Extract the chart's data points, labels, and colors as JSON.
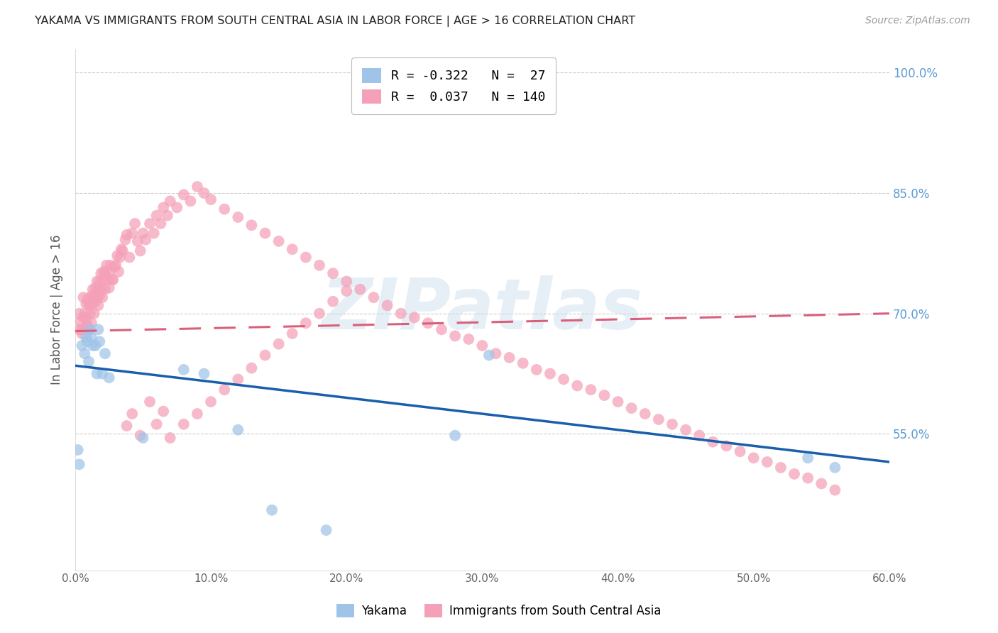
{
  "title": "YAKAMA VS IMMIGRANTS FROM SOUTH CENTRAL ASIA IN LABOR FORCE | AGE > 16 CORRELATION CHART",
  "source": "Source: ZipAtlas.com",
  "ylabel": "In Labor Force | Age > 16",
  "xlim": [
    0.0,
    0.6
  ],
  "ylim": [
    0.38,
    1.03
  ],
  "yticks": [
    0.55,
    0.7,
    0.85,
    1.0
  ],
  "ytick_labels": [
    "55.0%",
    "70.0%",
    "85.0%",
    "100.0%"
  ],
  "xticks": [
    0.0,
    0.1,
    0.2,
    0.3,
    0.4,
    0.5,
    0.6
  ],
  "xtick_labels": [
    "0.0%",
    "10.0%",
    "20.0%",
    "30.0%",
    "40.0%",
    "50.0%",
    "60.0%"
  ],
  "yakama_color": "#A0C4E8",
  "immigrants_color": "#F4A0B8",
  "trend_yakama_color": "#1A5FAB",
  "trend_immigrants_color": "#D9607A",
  "background_color": "#FFFFFF",
  "title_color": "#222222",
  "tick_color_right": "#5B9BD5",
  "grid_color": "#CCCCCC",
  "R_yakama": -0.322,
  "N_yakama": 27,
  "R_immigrants": 0.037,
  "N_immigrants": 140,
  "legend_label_yakama": "Yakama",
  "legend_label_immigrants": "Immigrants from South Central Asia",
  "watermark": "ZIPatlas",
  "watermark_color": "#C8DAEC",
  "yakama_x": [
    0.002,
    0.003,
    0.005,
    0.007,
    0.008,
    0.009,
    0.01,
    0.011,
    0.012,
    0.013,
    0.015,
    0.016,
    0.017,
    0.018,
    0.02,
    0.022,
    0.025,
    0.05,
    0.08,
    0.095,
    0.12,
    0.145,
    0.185,
    0.28,
    0.305,
    0.54,
    0.56
  ],
  "yakama_y": [
    0.53,
    0.512,
    0.66,
    0.65,
    0.67,
    0.665,
    0.64,
    0.68,
    0.67,
    0.66,
    0.66,
    0.625,
    0.68,
    0.665,
    0.625,
    0.65,
    0.62,
    0.545,
    0.63,
    0.625,
    0.555,
    0.455,
    0.43,
    0.548,
    0.648,
    0.52,
    0.508
  ],
  "immigrants_x": [
    0.003,
    0.003,
    0.004,
    0.005,
    0.005,
    0.006,
    0.006,
    0.007,
    0.007,
    0.008,
    0.008,
    0.009,
    0.009,
    0.01,
    0.01,
    0.011,
    0.011,
    0.012,
    0.012,
    0.013,
    0.013,
    0.014,
    0.014,
    0.015,
    0.015,
    0.016,
    0.016,
    0.017,
    0.017,
    0.018,
    0.018,
    0.019,
    0.019,
    0.02,
    0.02,
    0.021,
    0.022,
    0.022,
    0.023,
    0.024,
    0.025,
    0.025,
    0.026,
    0.027,
    0.028,
    0.029,
    0.03,
    0.031,
    0.032,
    0.033,
    0.034,
    0.035,
    0.037,
    0.038,
    0.04,
    0.042,
    0.044,
    0.046,
    0.048,
    0.05,
    0.052,
    0.055,
    0.058,
    0.06,
    0.063,
    0.065,
    0.068,
    0.07,
    0.075,
    0.08,
    0.085,
    0.09,
    0.095,
    0.1,
    0.11,
    0.12,
    0.13,
    0.14,
    0.15,
    0.16,
    0.17,
    0.18,
    0.19,
    0.2,
    0.21,
    0.22,
    0.23,
    0.24,
    0.25,
    0.26,
    0.27,
    0.28,
    0.29,
    0.3,
    0.31,
    0.32,
    0.33,
    0.34,
    0.35,
    0.36,
    0.37,
    0.38,
    0.39,
    0.4,
    0.41,
    0.42,
    0.43,
    0.44,
    0.45,
    0.46,
    0.47,
    0.48,
    0.49,
    0.5,
    0.51,
    0.52,
    0.53,
    0.54,
    0.55,
    0.56,
    0.038,
    0.042,
    0.048,
    0.055,
    0.06,
    0.065,
    0.07,
    0.08,
    0.09,
    0.1,
    0.11,
    0.12,
    0.13,
    0.14,
    0.15,
    0.16,
    0.17,
    0.18,
    0.19,
    0.2
  ],
  "immigrants_y": [
    0.68,
    0.7,
    0.69,
    0.68,
    0.675,
    0.695,
    0.72,
    0.68,
    0.7,
    0.692,
    0.712,
    0.718,
    0.685,
    0.712,
    0.68,
    0.71,
    0.7,
    0.722,
    0.688,
    0.712,
    0.73,
    0.7,
    0.72,
    0.715,
    0.732,
    0.72,
    0.74,
    0.71,
    0.73,
    0.722,
    0.74,
    0.73,
    0.75,
    0.72,
    0.742,
    0.752,
    0.73,
    0.75,
    0.76,
    0.742,
    0.732,
    0.752,
    0.76,
    0.742,
    0.742,
    0.758,
    0.76,
    0.772,
    0.752,
    0.77,
    0.78,
    0.778,
    0.792,
    0.798,
    0.77,
    0.8,
    0.812,
    0.79,
    0.778,
    0.8,
    0.792,
    0.812,
    0.8,
    0.822,
    0.812,
    0.832,
    0.822,
    0.84,
    0.832,
    0.848,
    0.84,
    0.858,
    0.85,
    0.842,
    0.83,
    0.82,
    0.81,
    0.8,
    0.79,
    0.78,
    0.77,
    0.76,
    0.75,
    0.74,
    0.73,
    0.72,
    0.71,
    0.7,
    0.695,
    0.688,
    0.68,
    0.672,
    0.668,
    0.66,
    0.65,
    0.645,
    0.638,
    0.63,
    0.625,
    0.618,
    0.61,
    0.605,
    0.598,
    0.59,
    0.582,
    0.575,
    0.568,
    0.562,
    0.555,
    0.548,
    0.54,
    0.535,
    0.528,
    0.52,
    0.515,
    0.508,
    0.5,
    0.495,
    0.488,
    0.48,
    0.56,
    0.575,
    0.548,
    0.59,
    0.562,
    0.578,
    0.545,
    0.562,
    0.575,
    0.59,
    0.605,
    0.618,
    0.632,
    0.648,
    0.662,
    0.675,
    0.688,
    0.7,
    0.715,
    0.728
  ]
}
